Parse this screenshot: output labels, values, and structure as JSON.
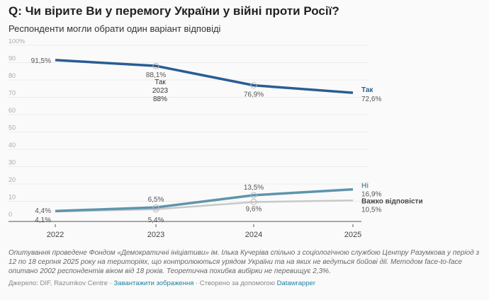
{
  "title": "Q: Чи вірите Ви у перемогу України у війні проти Росії?",
  "subtitle": "Респонденти могли обрати один варіант відповіді",
  "chart_data": {
    "type": "line",
    "x": [
      "2022",
      "2023",
      "2024",
      "2025"
    ],
    "ylim": [
      0,
      100
    ],
    "yticks": [
      "0",
      "10",
      "20",
      "30",
      "40",
      "50",
      "60",
      "70",
      "80",
      "90",
      "100%"
    ],
    "grid": true,
    "series": [
      {
        "name": "Так",
        "values": [
          91.5,
          88.1,
          76.9,
          72.6
        ],
        "labels": [
          "91,5%",
          "88,1%",
          "76,9%",
          "72,6%"
        ],
        "color": "#2a5d92"
      },
      {
        "name": "Ні",
        "values": [
          4.4,
          6.5,
          13.5,
          16.9
        ],
        "labels": [
          "4,4%",
          "6,5%",
          "13,5%",
          "16,9%"
        ],
        "color": "#5f94ad"
      },
      {
        "name": "Важко відповісти",
        "values": [
          4.1,
          5.4,
          9.6,
          10.5
        ],
        "labels": [
          "4,1%",
          "5,4%",
          "9,6%",
          "10,5%"
        ],
        "color": "#c8c8c8"
      }
    ],
    "tooltip": {
      "series": "Так",
      "year": "2023",
      "value": "88%"
    }
  },
  "notes": "Опитування проведене Фондом «Демократичні ініціативи» ім. Ілька Кучеріва спільно з соціологічною службою Центру Разумкова у період з 12 по 18 серпня 2025 року на територіях, що контролюються урядом України та на яких не ведуться бойові дії. Методом face-to-face опитано 2002 респондентів віком від 18 років. Теоретична похибка вибірки не перевищує 2,3%.",
  "source": {
    "prefix": "Джерело: DIF, Razumkov Centre · ",
    "download": "Завантажити зображення",
    "mid": " · Створено за допомогою ",
    "datawrapper": "Datawrapper"
  }
}
